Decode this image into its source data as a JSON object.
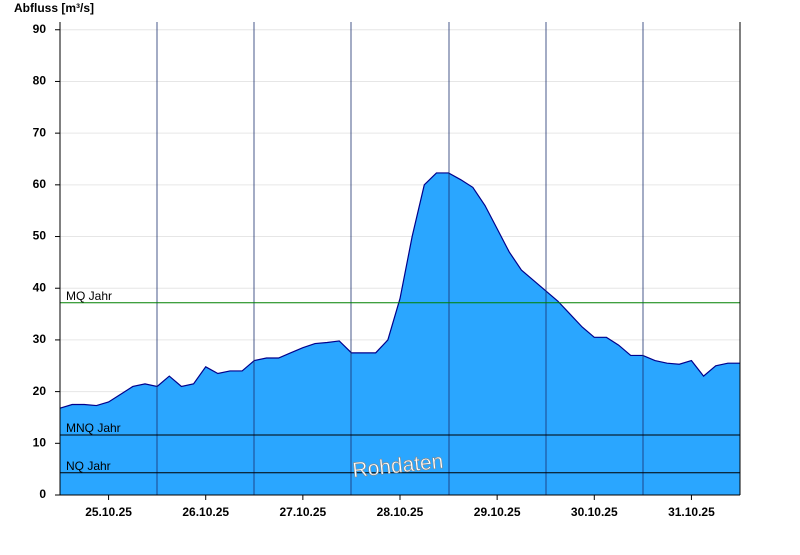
{
  "chart_data": {
    "type": "area",
    "ylabel": "Abfluss [m³/s]",
    "watermark": "Rohdaten",
    "x": [
      0,
      3,
      6,
      9,
      12,
      15,
      18,
      21,
      24,
      27,
      30,
      33,
      36,
      39,
      42,
      45,
      48,
      51,
      54,
      57,
      60,
      63,
      66,
      69,
      72,
      75,
      78,
      81,
      84,
      87,
      90,
      93,
      96,
      99,
      102,
      105,
      108,
      111,
      114,
      117,
      120,
      123,
      126,
      129,
      132,
      135,
      138,
      141,
      144,
      147,
      150,
      153,
      156,
      159,
      162,
      165,
      168
    ],
    "series": [
      {
        "color": "#2aa6ff",
        "line_color": "#00008b",
        "values": [
          16.8,
          17.5,
          17.5,
          17.3,
          18.0,
          19.5,
          21.0,
          21.5,
          21.0,
          23.0,
          21.0,
          21.5,
          24.8,
          23.5,
          24.0,
          24.0,
          26.0,
          26.5,
          26.5,
          27.5,
          28.5,
          29.3,
          29.5,
          29.8,
          27.5,
          27.5,
          27.5,
          30.0,
          38.0,
          50.0,
          60.0,
          62.3,
          62.3,
          61.0,
          59.5,
          56.0,
          51.5,
          47.0,
          43.5,
          41.5,
          39.5,
          37.5,
          35.0,
          32.5,
          30.5,
          30.5,
          29.0,
          27.0,
          27.0,
          26.0,
          25.5,
          25.3,
          26.0,
          23.0,
          25.0,
          25.5,
          25.5
        ]
      }
    ],
    "reference_lines": [
      {
        "label": "MQ Jahr",
        "value": 37.2,
        "color": "#008000"
      },
      {
        "label": "MNQ Jahr",
        "value": 11.6,
        "color": "#000000"
      },
      {
        "label": "NQ Jahr",
        "value": 4.3,
        "color": "#000000"
      }
    ],
    "xlim": [
      0,
      168
    ],
    "xticks": [
      {
        "value": 12,
        "label": "25.10.25"
      },
      {
        "value": 36,
        "label": "26.10.25"
      },
      {
        "value": 60,
        "label": "27.10.25"
      },
      {
        "value": 84,
        "label": "28.10.25"
      },
      {
        "value": 108,
        "label": "29.10.25"
      },
      {
        "value": 132,
        "label": "30.10.25"
      },
      {
        "value": 156,
        "label": "31.10.25"
      }
    ],
    "ylim": [
      0,
      91.5
    ],
    "yticks": [
      0,
      10,
      20,
      30,
      40,
      50,
      60,
      70,
      80,
      90
    ],
    "grid": true
  }
}
